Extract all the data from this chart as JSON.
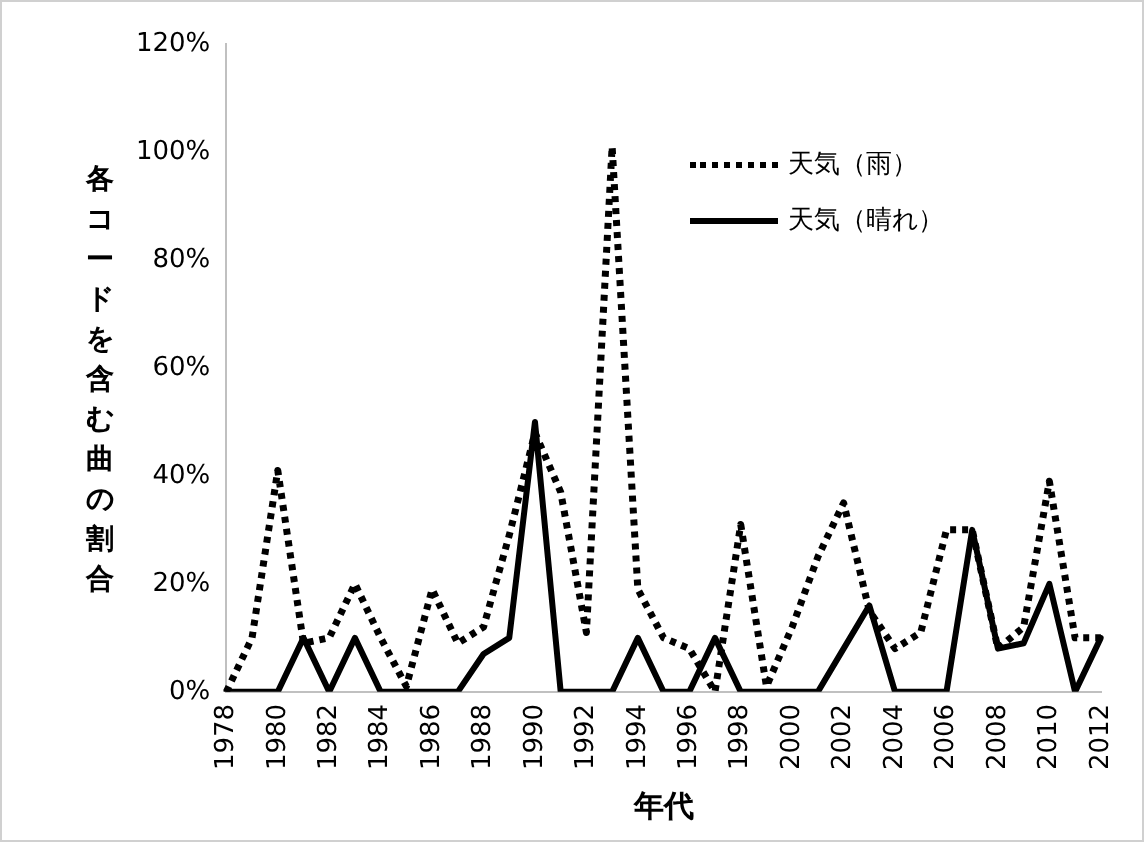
{
  "chart_data": {
    "type": "line",
    "xlabel": "年代",
    "ylabel": "各コードを含む曲の割合",
    "categories": [
      "1978",
      null,
      "1980",
      null,
      "1982",
      null,
      "1984",
      null,
      "1986",
      null,
      "1988",
      null,
      "1990",
      null,
      "1992",
      null,
      "1994",
      null,
      "1996",
      null,
      "1998",
      null,
      "2000",
      null,
      "2002",
      null,
      "2004",
      null,
      "2006",
      null,
      "2008",
      null,
      "2010",
      null,
      "2012"
    ],
    "series": [
      {
        "name": "天気（雨）",
        "color": "#000000",
        "line_style": "dotted",
        "values": [
          0,
          10,
          41,
          9,
          10,
          20,
          10,
          1,
          19,
          9,
          12,
          29,
          48,
          37,
          11,
          101,
          19,
          10,
          8,
          0,
          31,
          1,
          12,
          25,
          35,
          15,
          8,
          11,
          30,
          30,
          8,
          12,
          39,
          10,
          10
        ]
      },
      {
        "name": "天気（晴れ）",
        "color": "#000000",
        "line_style": "solid",
        "values": [
          0,
          0,
          0,
          10,
          0,
          10,
          0,
          0,
          0,
          0,
          7,
          10,
          50,
          0,
          0,
          0,
          10,
          0,
          0,
          10,
          0,
          0,
          0,
          0,
          8,
          16,
          0,
          0,
          0,
          30,
          8,
          9,
          20,
          0,
          10
        ]
      }
    ],
    "ylim": [
      0,
      120
    ],
    "yticks": [
      {
        "value": 0,
        "label": "0%"
      },
      {
        "value": 20,
        "label": "20%"
      },
      {
        "value": 40,
        "label": "40%"
      },
      {
        "value": 60,
        "label": "60%"
      },
      {
        "value": 80,
        "label": "80%"
      },
      {
        "value": 100,
        "label": "100%"
      },
      {
        "value": 120,
        "label": "120%"
      }
    ],
    "grid": false,
    "legend": "top right",
    "marker": "none"
  }
}
